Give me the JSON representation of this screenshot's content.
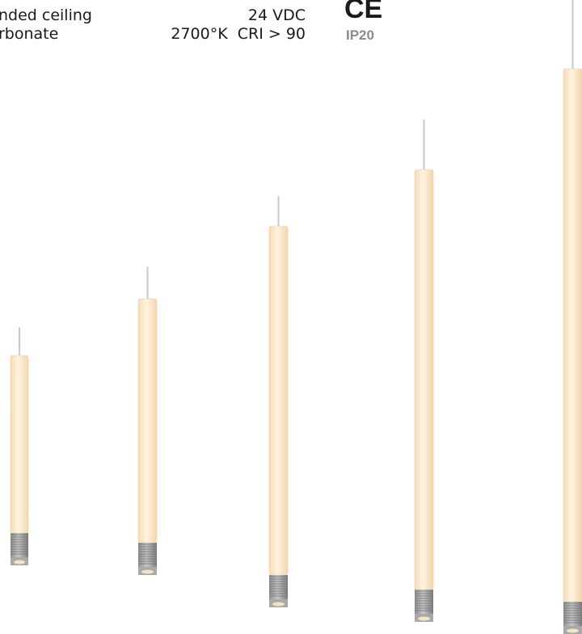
{
  "specs": {
    "mounting": "nded ceiling",
    "material": "rbonate",
    "voltage": "24 VDC",
    "light": "2700°K  CRI > 90",
    "ce_mark": "CE",
    "ip_rating": "IP20"
  }
}
